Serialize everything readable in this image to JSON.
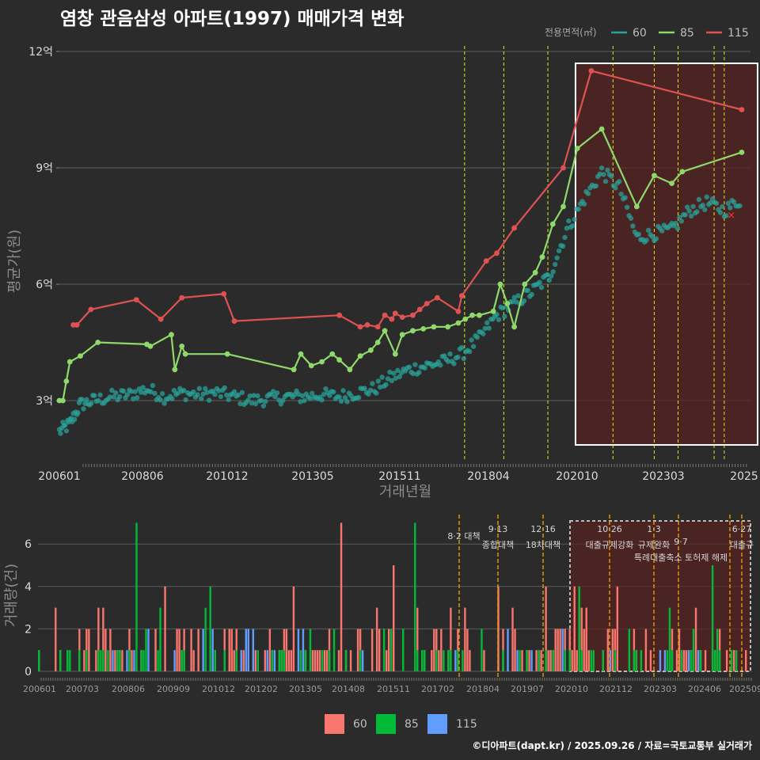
{
  "title": "염창 관음삼성 아파트(1997) 매매가격 변화",
  "credit": "©디아파트(dapt.kr) / 2025.09.26 / 자료=국토교통부 실거래가",
  "colors": {
    "s60": "#2aa198",
    "s85": "#8fd96a",
    "s115": "#e05252",
    "v60": "#f8766d",
    "v85": "#00ba38",
    "v115": "#619cff",
    "event_line": "#e6e619",
    "vol_event_line": "#e69f00"
  },
  "chart_data": [
    {
      "type": "line",
      "title": "염창 관음삼성 아파트(1997) 매매가격 변화",
      "xlabel": "거래년월",
      "ylabel": "평균가(원)",
      "x_tick_labels": [
        "200601",
        "200806",
        "201012",
        "201305",
        "201511",
        "201804",
        "202010",
        "202303",
        "2025"
      ],
      "y_ticks": [
        {
          "value": 3,
          "label": "3억"
        },
        {
          "value": 6,
          "label": "6억"
        },
        {
          "value": 9,
          "label": "9억"
        },
        {
          "value": 12,
          "label": "12억"
        }
      ],
      "ylim": [
        1.5,
        12.5
      ],
      "xlim": [
        2006.0,
        2025.75
      ],
      "legend": {
        "title": "전용면적(㎡)",
        "placement": "top-right",
        "entries": [
          "60",
          "85",
          "115"
        ]
      },
      "highlight_range": [
        2020.75,
        2025.5
      ],
      "event_lines": [
        2017.58,
        2018.7,
        2019.96,
        2021.82,
        2023.0,
        2023.68,
        2024.71,
        2025.0
      ],
      "series": [
        {
          "name": "115",
          "points": [
            [
              2006.4,
              4.95
            ],
            [
              2006.5,
              4.95
            ],
            [
              2006.9,
              5.35
            ],
            [
              2008.2,
              5.6
            ],
            [
              2008.9,
              5.1
            ],
            [
              2009.5,
              5.65
            ],
            [
              2010.7,
              5.75
            ],
            [
              2011.0,
              5.05
            ],
            [
              2014.0,
              5.2
            ],
            [
              2014.6,
              4.9
            ],
            [
              2014.8,
              4.95
            ],
            [
              2015.1,
              4.9
            ],
            [
              2015.3,
              5.2
            ],
            [
              2015.5,
              5.1
            ],
            [
              2015.6,
              5.25
            ],
            [
              2015.8,
              5.15
            ],
            [
              2016.1,
              5.2
            ],
            [
              2016.3,
              5.35
            ],
            [
              2016.5,
              5.5
            ],
            [
              2016.8,
              5.65
            ],
            [
              2017.4,
              5.3
            ],
            [
              2017.5,
              5.7
            ],
            [
              2018.2,
              6.6
            ],
            [
              2018.5,
              6.8
            ],
            [
              2019.0,
              7.45
            ],
            [
              2020.4,
              9.0
            ],
            [
              2021.2,
              11.5
            ],
            [
              2025.5,
              10.5
            ]
          ]
        },
        {
          "name": "85",
          "points": [
            [
              2006.0,
              3.0
            ],
            [
              2006.1,
              3.0
            ],
            [
              2006.2,
              3.5
            ],
            [
              2006.3,
              4.0
            ],
            [
              2006.6,
              4.15
            ],
            [
              2007.1,
              4.5
            ],
            [
              2008.5,
              4.45
            ],
            [
              2008.6,
              4.4
            ],
            [
              2009.2,
              4.7
            ],
            [
              2009.3,
              3.8
            ],
            [
              2009.5,
              4.4
            ],
            [
              2009.6,
              4.2
            ],
            [
              2010.8,
              4.2
            ],
            [
              2012.7,
              3.8
            ],
            [
              2012.9,
              4.2
            ],
            [
              2013.2,
              3.9
            ],
            [
              2013.5,
              4.0
            ],
            [
              2013.8,
              4.2
            ],
            [
              2014.0,
              4.05
            ],
            [
              2014.3,
              3.8
            ],
            [
              2014.6,
              4.15
            ],
            [
              2014.9,
              4.3
            ],
            [
              2015.1,
              4.5
            ],
            [
              2015.3,
              4.8
            ],
            [
              2015.6,
              4.2
            ],
            [
              2015.8,
              4.7
            ],
            [
              2016.1,
              4.8
            ],
            [
              2016.4,
              4.85
            ],
            [
              2016.7,
              4.9
            ],
            [
              2017.1,
              4.9
            ],
            [
              2017.4,
              5.0
            ],
            [
              2017.6,
              5.1
            ],
            [
              2017.8,
              5.2
            ],
            [
              2018.0,
              5.2
            ],
            [
              2018.4,
              5.3
            ],
            [
              2018.6,
              6.0
            ],
            [
              2018.8,
              5.5
            ],
            [
              2019.0,
              4.9
            ],
            [
              2019.3,
              6.0
            ],
            [
              2019.6,
              6.3
            ],
            [
              2019.8,
              6.7
            ],
            [
              2020.1,
              7.55
            ],
            [
              2020.4,
              8.0
            ],
            [
              2020.8,
              9.5
            ],
            [
              2021.5,
              10.0
            ],
            [
              2022.5,
              8.0
            ],
            [
              2023.0,
              8.8
            ],
            [
              2023.5,
              8.6
            ],
            [
              2023.8,
              8.9
            ],
            [
              2025.5,
              9.4
            ]
          ]
        },
        {
          "name": "60",
          "points": [
            [
              2006.0,
              2.2
            ],
            [
              2006.3,
              2.4
            ],
            [
              2006.6,
              2.9
            ],
            [
              2007.0,
              3.0
            ],
            [
              2007.5,
              3.1
            ],
            [
              2008.0,
              3.15
            ],
            [
              2008.5,
              3.3
            ],
            [
              2009.0,
              3.1
            ],
            [
              2009.5,
              3.2
            ],
            [
              2010.0,
              3.15
            ],
            [
              2010.5,
              3.2
            ],
            [
              2011.0,
              3.1
            ],
            [
              2011.5,
              3.0
            ],
            [
              2012.0,
              3.05
            ],
            [
              2012.5,
              3.1
            ],
            [
              2013.0,
              3.1
            ],
            [
              2013.5,
              3.15
            ],
            [
              2014.0,
              3.1
            ],
            [
              2014.5,
              3.2
            ],
            [
              2015.0,
              3.3
            ],
            [
              2015.5,
              3.6
            ],
            [
              2016.0,
              3.8
            ],
            [
              2016.5,
              3.9
            ],
            [
              2017.0,
              4.0
            ],
            [
              2017.5,
              4.2
            ],
            [
              2018.0,
              4.6
            ],
            [
              2018.5,
              5.2
            ],
            [
              2019.0,
              5.5
            ],
            [
              2019.5,
              5.8
            ],
            [
              2020.0,
              6.2
            ],
            [
              2020.5,
              7.4
            ],
            [
              2021.0,
              8.2
            ],
            [
              2021.5,
              8.9
            ],
            [
              2022.0,
              8.5
            ],
            [
              2022.5,
              7.2
            ],
            [
              2023.0,
              7.3
            ],
            [
              2023.5,
              7.4
            ],
            [
              2024.0,
              7.9
            ],
            [
              2024.5,
              8.1
            ],
            [
              2025.0,
              7.9
            ],
            [
              2025.5,
              8.2
            ]
          ]
        }
      ],
      "marker": {
        "label": "×",
        "at": [
          2025.2,
          7.8
        ]
      }
    },
    {
      "type": "bar",
      "ylabel": "거래량(건)",
      "x_tick_labels": [
        "200601",
        "200703",
        "200806",
        "200909",
        "201012",
        "201202",
        "201305",
        "201408",
        "201511",
        "201702",
        "201804",
        "201907",
        "202010",
        "202112",
        "202303",
        "202406",
        "202509"
      ],
      "y_ticks": [
        0,
        2,
        4,
        6
      ],
      "ylim": [
        0,
        7
      ],
      "legend": {
        "placement": "bottom",
        "entries": [
          "60",
          "85",
          "115"
        ]
      },
      "events": [
        {
          "date": "8·2 대책",
          "label": "8·2 대책",
          "x": 2017.58
        },
        {
          "date": "9·13",
          "label": "종합대책",
          "x": 2018.7
        },
        {
          "date": "12·16",
          "label": "18차대책",
          "x": 2019.96
        },
        {
          "date": "10·26",
          "label": "대출규제강화",
          "x": 2021.82
        },
        {
          "date": "1·3",
          "label": "규제완화",
          "x": 2023.0
        },
        {
          "date": "9·7",
          "label": "특례대출축소 토허제 해제",
          "x": 2023.68
        },
        {
          "date": "6·27",
          "label": "대출규",
          "x": 2025.49
        }
      ]
    }
  ]
}
